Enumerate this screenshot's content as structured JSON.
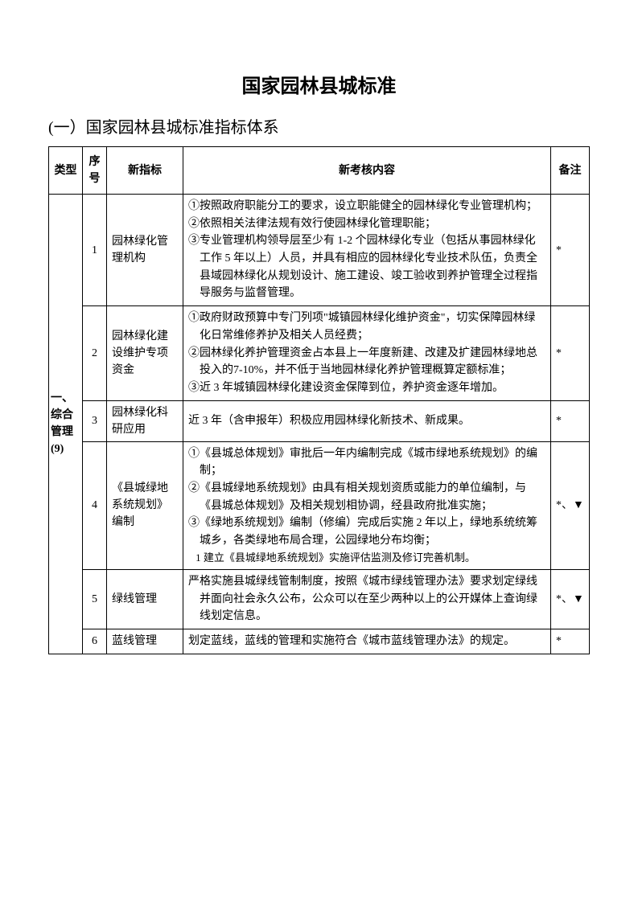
{
  "title": "国家园林县城标准",
  "subtitle": "(一）国家园林县城标准指标体系",
  "headers": {
    "type": "类型",
    "seq": "序号",
    "index": "新指标",
    "content": "新考核内容",
    "remark": "备注"
  },
  "category": "一、综合管理(9)",
  "rows": [
    {
      "seq": "1",
      "index": "园林绿化管理机构",
      "content_lines": [
        "①按照政府职能分工的要求，设立职能健全的园林绿化专业管理机构；",
        "②依照相关法律法规有效行使园林绿化管理职能；",
        "③专业管理机构领导层至少有 1-2 个园林绿化专业（包括从事园林绿化工作 5 年以上）人员，并具有相应的园林绿化专业技术队伍，负责全县域园林绿化从规划设计、施工建设、竣工验收到养护管理全过程指导服务与监督管理。"
      ],
      "remark": "*"
    },
    {
      "seq": "2",
      "index": "园林绿化建设维护专项资金",
      "content_lines": [
        "①政府财政预算中专门列项\"城镇园林绿化维护资金\"，切实保障园林绿化日常维修养护及相关人员经费；",
        "②园林绿化养护管理资金占本县上一年度新建、改建及扩建园林绿地总投入的7-10%，并不低于当地园林绿化养护管理概算定额标准；",
        "③近 3 年城镇园林绿化建设资金保障到位，养护资金逐年增加。"
      ],
      "remark": "*"
    },
    {
      "seq": "3",
      "index": "园林绿化科研应用",
      "content_lines": [
        "近 3 年（含申报年）积极应用园林绿化新技术、新成果。"
      ],
      "remark": "*"
    },
    {
      "seq": "4",
      "index": "《县城绿地系统规划》编制",
      "content_lines": [
        "①《县城总体规划》审批后一年内编制完成《城市绿地系统规划》的编制；",
        "②《县城绿地系统规划》由具有相关规划资质或能力的单位编制，与《县城总体规划》及相关规划相协调，经县政府批准实施；",
        "③《绿地系统规划》编制（修编）完成后实施 2 年以上，绿地系统统筹城乡，各类绿地布局合理，公园绿地分布均衡；"
      ],
      "sublist": [
        "1 建立《县城绿地系统规划》实施评估监测及修订完善机制。"
      ],
      "remark": "*、▼"
    },
    {
      "seq": "5",
      "index": "绿线管理",
      "content_lines": [
        "严格实施县城绿线管制制度，按照《城市绿线管理办法》要求划定绿线并面向社会永久公布，公众可以在至少两种以上的公开媒体上查询绿线划定信息。"
      ],
      "remark": "*、▼"
    },
    {
      "seq": "6",
      "index": "蓝线管理",
      "content_lines": [
        "划定蓝线，蓝线的管理和实施符合《城市蓝线管理办法》的规定。"
      ],
      "remark": "*"
    }
  ]
}
